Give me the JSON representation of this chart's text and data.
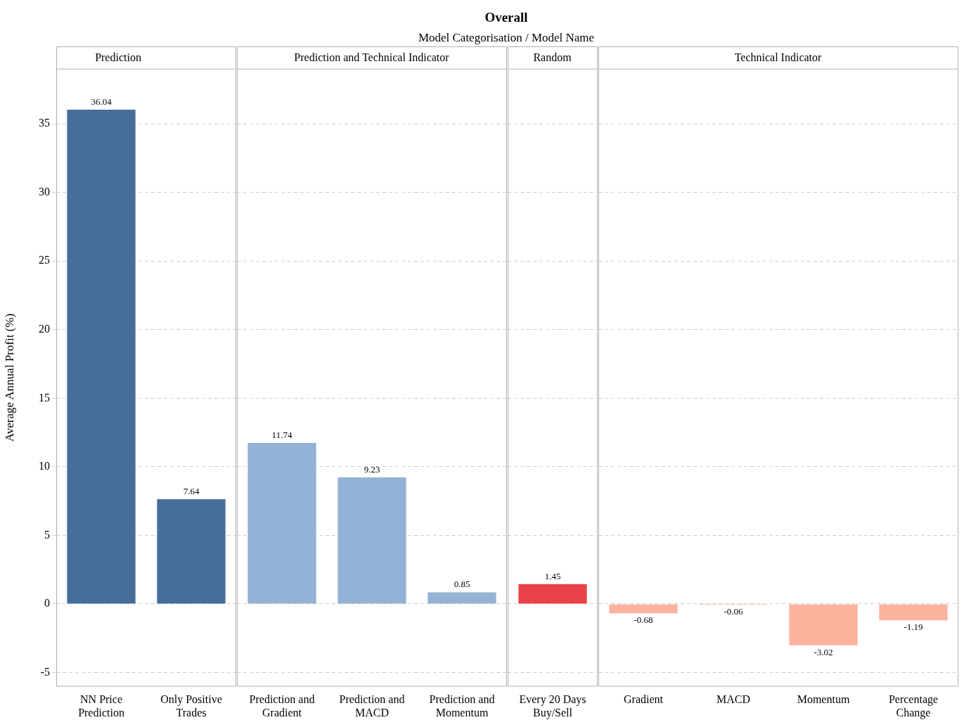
{
  "chart_data": [
    {
      "type": "bar",
      "title": "Prediction",
      "ylabel": "Average Annual Profit (%)",
      "annotations": [
        "Overall",
        "Model Categorisation  /  Model Name"
      ],
      "categories": [
        "NN Price Prediction",
        "Only Positive Trades"
      ],
      "values": [
        36.04,
        7.64
      ],
      "colors": [
        "#466e9b",
        "#466e9b"
      ],
      "ylim": [
        -6,
        39
      ],
      "yticks": [
        -5,
        0,
        5,
        10,
        15,
        20,
        25,
        30,
        35
      ],
      "grid": "y",
      "data_labels": true
    },
    {
      "type": "bar",
      "title": "Prediction and Technical Indicator",
      "categories": [
        "Prediction and Gradient",
        "Prediction and MACD",
        "Prediction and Momentum"
      ],
      "values": [
        11.74,
        9.23,
        0.85
      ],
      "colors": [
        "#93b2d6",
        "#93b2d6",
        "#93b2d6"
      ],
      "ylim": [
        -6,
        39
      ],
      "yticks": [
        -5,
        0,
        5,
        10,
        15,
        20,
        25,
        30,
        35
      ],
      "grid": "y",
      "data_labels": true,
      "tick_labels": "x"
    },
    {
      "type": "bar",
      "title": "Random",
      "categories": [
        "Every 20 Days Buy/Sell"
      ],
      "values": [
        1.45
      ],
      "colors": [
        "#e8434a"
      ],
      "ylim": [
        -6,
        39
      ],
      "yticks": [
        -5,
        0,
        5,
        10,
        15,
        20,
        25,
        30,
        35
      ],
      "grid": "y",
      "data_labels": true,
      "tick_labels": "x"
    },
    {
      "type": "bar",
      "title": "Technical Indicator",
      "categories": [
        "Gradient",
        "MACD",
        "Momentum",
        "Percentage Change"
      ],
      "values": [
        -0.68,
        -0.06,
        -3.02,
        -1.19
      ],
      "colors": [
        "#fbb39e",
        "#fbb39e",
        "#fbb39e",
        "#fbb39e"
      ],
      "ylim": [
        -6,
        39
      ],
      "yticks": [
        -5,
        0,
        5,
        10,
        15,
        20,
        25,
        30,
        35
      ],
      "grid": "y",
      "data_labels": true,
      "tick_labels": "x"
    }
  ]
}
